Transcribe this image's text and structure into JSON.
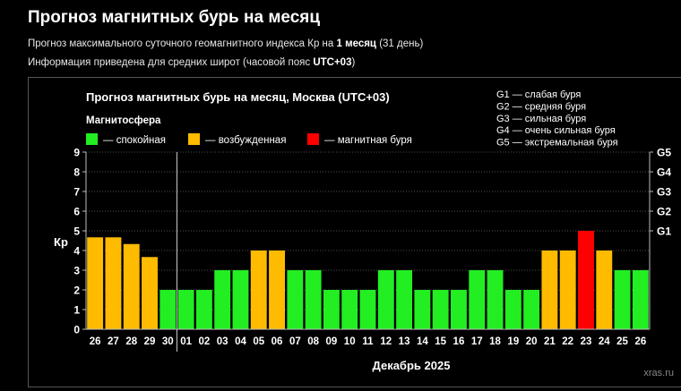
{
  "page": {
    "title": "Прогноз магнитных бурь на месяц",
    "line1": {
      "prefix": "Прогноз максимального суточного геомагнитного индекса Кр на ",
      "bold": "1 месяц",
      "suffix": " (31 день)"
    },
    "line2": {
      "prefix": "Информация приведена для средних широт (часовой пояс ",
      "bold": "UTC+03",
      "suffix": ")"
    }
  },
  "chart_data": {
    "type": "bar",
    "title": "Прогноз магнитных бурь на месяц, Москва (UTC+03)",
    "legend": {
      "title": "Магнитосфера",
      "items": [
        {
          "label": "— спокойная",
          "color": "#22ee22"
        },
        {
          "label": "— возбужденная",
          "color": "#ffbb00"
        },
        {
          "label": "— магнитная буря",
          "color": "#ff0000"
        }
      ]
    },
    "g_scale": [
      "G1 — слабая буря",
      "G2 — средняя буря",
      "G3 — сильная буря",
      "G4 — очень сильная буря",
      "G5 — экстремальная буря"
    ],
    "ylabel": "Кр",
    "xlabel": "Декабрь 2025",
    "ylim": [
      0,
      9
    ],
    "yticks": [
      0,
      1,
      2,
      3,
      4,
      5,
      6,
      7,
      8,
      9
    ],
    "right_axis": [
      {
        "label": "G1",
        "kp": 5
      },
      {
        "label": "G2",
        "kp": 6
      },
      {
        "label": "G3",
        "kp": 7
      },
      {
        "label": "G4",
        "kp": 8
      },
      {
        "label": "G5",
        "kp": 9
      }
    ],
    "categories": [
      "26",
      "27",
      "28",
      "29",
      "30",
      "01",
      "02",
      "03",
      "04",
      "05",
      "06",
      "07",
      "08",
      "09",
      "10",
      "11",
      "12",
      "13",
      "14",
      "15",
      "16",
      "17",
      "18",
      "19",
      "20",
      "21",
      "22",
      "23",
      "24",
      "25",
      "26"
    ],
    "values": [
      4.67,
      4.67,
      4.33,
      3.67,
      2,
      2,
      2,
      3,
      3,
      4,
      4,
      3,
      3,
      2,
      2,
      2,
      3,
      3,
      2,
      2,
      2,
      3,
      3,
      2,
      2,
      4,
      4,
      5,
      4,
      3,
      3
    ],
    "colors": [
      "#ffbb00",
      "#ffbb00",
      "#ffbb00",
      "#ffbb00",
      "#22ee22",
      "#22ee22",
      "#22ee22",
      "#22ee22",
      "#22ee22",
      "#ffbb00",
      "#ffbb00",
      "#22ee22",
      "#22ee22",
      "#22ee22",
      "#22ee22",
      "#22ee22",
      "#22ee22",
      "#22ee22",
      "#22ee22",
      "#22ee22",
      "#22ee22",
      "#22ee22",
      "#22ee22",
      "#22ee22",
      "#22ee22",
      "#ffbb00",
      "#ffbb00",
      "#ff0000",
      "#ffbb00",
      "#22ee22",
      "#22ee22"
    ],
    "divider_after": "30",
    "watermark": "xras.ru"
  }
}
